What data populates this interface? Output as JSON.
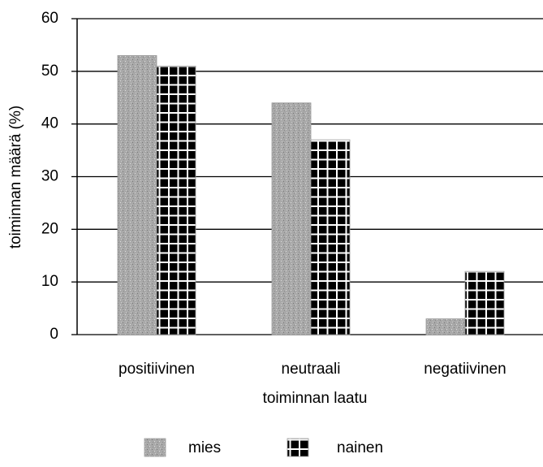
{
  "chart_data": {
    "type": "bar",
    "categories": [
      "positiivinen",
      "neutraali",
      "negatiivinen"
    ],
    "series": [
      {
        "name": "mies",
        "color": "#a9a9a9",
        "values": [
          53,
          44,
          3
        ]
      },
      {
        "name": "nainen",
        "color": "#000000",
        "values": [
          51,
          37,
          12
        ]
      }
    ],
    "xlabel": "toiminnan laatu",
    "ylabel": "toiminnan määrä (%)",
    "ylim": [
      0,
      60
    ],
    "yticks": [
      0,
      10,
      20,
      30,
      40,
      50,
      60
    ],
    "grid": true,
    "legend": "bottom"
  }
}
